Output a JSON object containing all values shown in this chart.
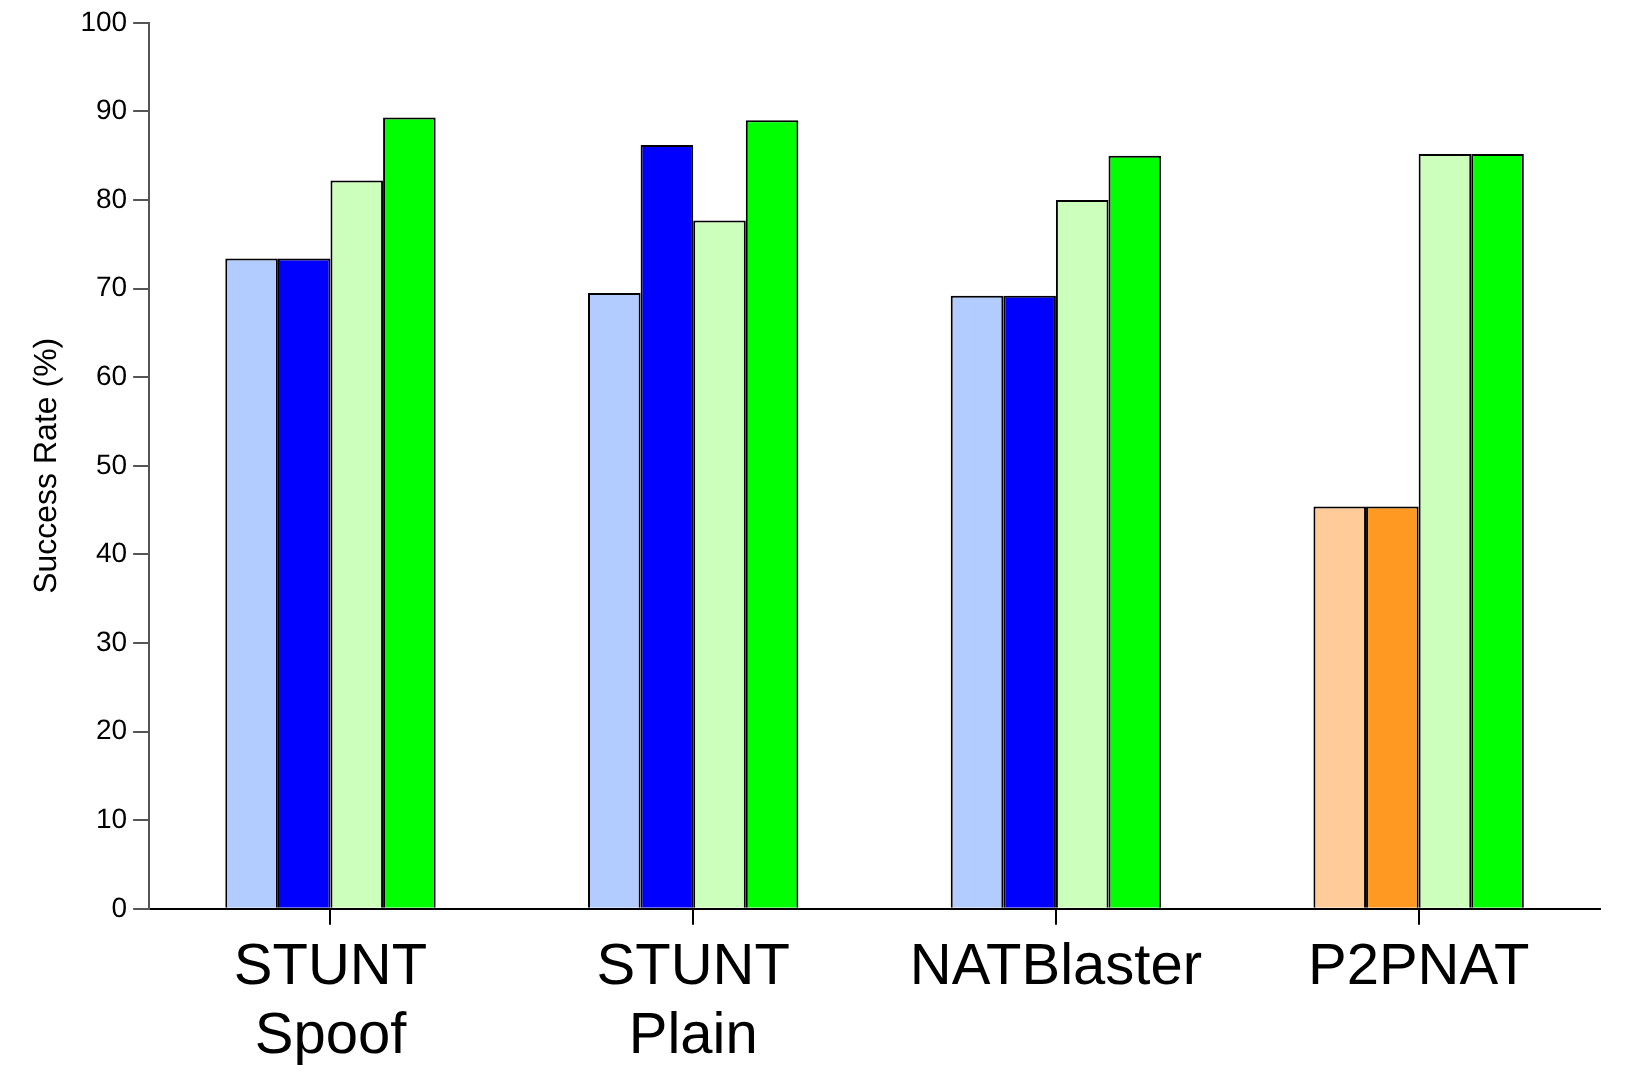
{
  "chart_data": {
    "type": "bar",
    "ylabel": "Success Rate (%)",
    "categories": [
      "STUNT\nSpoof",
      "STUNT\nPlain",
      "NATBlaster",
      "P2PNAT"
    ],
    "series": [
      {
        "colors": [
          "#b3ccff",
          "#b3ccff",
          "#b3ccff",
          "#ffcc99"
        ],
        "values": [
          73.4,
          69.5,
          69.2,
          45.4
        ]
      },
      {
        "colors": [
          "#0000ff",
          "#0000ff",
          "#0000ff",
          "#ff9922"
        ],
        "values": [
          73.4,
          86.2,
          69.2,
          45.4
        ]
      },
      {
        "color": "#ccffbb",
        "values": [
          82.2,
          77.7,
          80.0,
          85.2
        ]
      },
      {
        "color": "#00ff00",
        "values": [
          89.3,
          89.0,
          85.0,
          85.2
        ]
      }
    ],
    "ylim": [
      0,
      100
    ],
    "yticks": [
      0,
      10,
      20,
      30,
      40,
      50,
      60,
      70,
      80,
      90,
      100
    ],
    "grid": false,
    "legend": false
  }
}
